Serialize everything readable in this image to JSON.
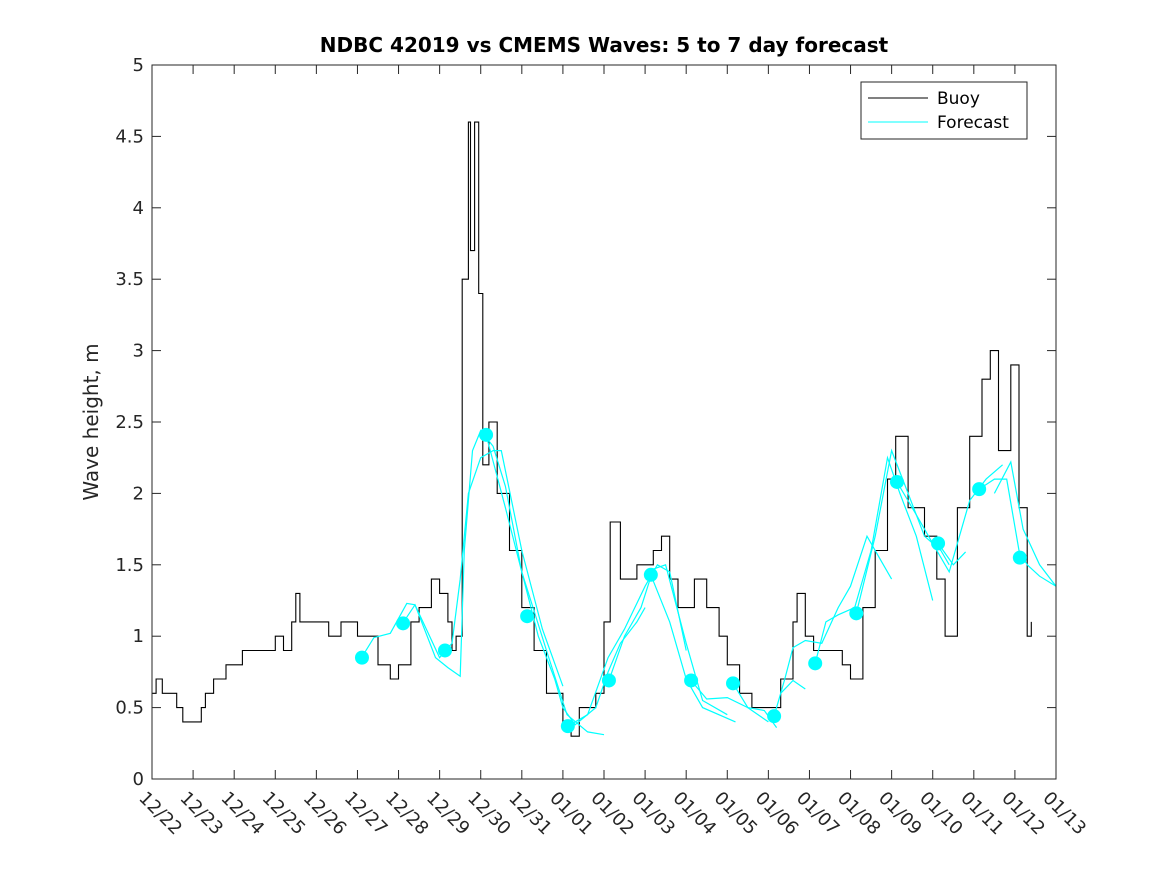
{
  "chart_data": {
    "type": "line",
    "title": "NDBC 42019 vs CMEMS Waves: 5 to 7 day forecast",
    "xlabel": "",
    "ylabel": "Wave height, m",
    "x_unit": "days since 12/22",
    "xlim": [
      0,
      22
    ],
    "ylim": [
      0,
      5
    ],
    "xticks": [
      0,
      1,
      2,
      3,
      4,
      5,
      6,
      7,
      8,
      9,
      10,
      11,
      12,
      13,
      14,
      15,
      16,
      17,
      18,
      19,
      20,
      21,
      22
    ],
    "xtick_labels": [
      "12/22",
      "12/23",
      "12/24",
      "12/25",
      "12/26",
      "12/27",
      "12/28",
      "12/29",
      "12/30",
      "12/31",
      "01/01",
      "01/02",
      "01/03",
      "01/04",
      "01/05",
      "01/06",
      "01/07",
      "01/08",
      "01/09",
      "01/10",
      "01/11",
      "01/12",
      "01/13"
    ],
    "yticks": [
      0,
      0.5,
      1,
      1.5,
      2,
      2.5,
      3,
      3.5,
      4,
      4.5,
      5
    ],
    "ytick_labels": [
      "0",
      "0.5",
      "1",
      "1.5",
      "2",
      "2.5",
      "3",
      "3.5",
      "4",
      "4.5",
      "5"
    ],
    "grid": false,
    "legend": {
      "placement": "top-right",
      "entries": [
        "Buoy",
        "Forecast"
      ]
    },
    "colors": {
      "buoy": "#000000",
      "forecast": "#00ffff"
    },
    "buoy": [
      [
        0,
        0.6
      ],
      [
        0.1,
        0.7
      ],
      [
        0.25,
        0.6
      ],
      [
        0.6,
        0.5
      ],
      [
        0.75,
        0.4
      ],
      [
        1.0,
        0.4
      ],
      [
        1.2,
        0.5
      ],
      [
        1.3,
        0.6
      ],
      [
        1.5,
        0.7
      ],
      [
        1.8,
        0.8
      ],
      [
        2.0,
        0.8
      ],
      [
        2.2,
        0.9
      ],
      [
        2.4,
        0.9
      ],
      [
        2.6,
        0.8
      ],
      [
        2.8,
        0.9
      ],
      [
        3.0,
        1.0
      ],
      [
        3.2,
        0.9
      ],
      [
        3.5,
        1.0
      ],
      [
        3.7,
        1.1
      ],
      [
        4.0,
        1.1
      ],
      [
        4.3,
        1.2
      ],
      [
        4.5,
        1.3
      ],
      [
        4.6,
        1.1
      ],
      [
        4.8,
        1.0
      ],
      [
        5.0,
        1.1
      ],
      [
        5.3,
        1.0
      ],
      [
        5.6,
        1.0
      ],
      [
        5.9,
        1.1
      ],
      [
        6.2,
        1.0
      ],
      [
        6.5,
        0.9
      ],
      [
        6.8,
        0.9
      ],
      [
        7.0,
        0.8
      ],
      [
        7.3,
        0.8
      ],
      [
        7.5,
        0.7
      ],
      [
        7.8,
        0.8
      ],
      [
        8.0,
        0.8
      ],
      [
        8.1,
        1.0
      ],
      [
        8.3,
        1.1
      ],
      [
        6.5,
        1.2
      ]
    ],
    "buoy_series": [
      [
        0,
        0.6
      ],
      [
        0.1,
        0.7
      ],
      [
        0.25,
        0.6
      ],
      [
        0.6,
        0.5
      ],
      [
        0.75,
        0.4
      ],
      [
        1.0,
        0.4
      ],
      [
        1.2,
        0.5
      ],
      [
        1.3,
        0.6
      ],
      [
        1.5,
        0.7
      ],
      [
        1.8,
        0.8
      ],
      [
        2.0,
        0.8
      ],
      [
        2.2,
        0.9
      ],
      [
        2.5,
        0.9
      ],
      [
        2.8,
        0.9
      ],
      [
        3.0,
        1.0
      ],
      [
        3.2,
        0.9
      ],
      [
        3.4,
        1.1
      ],
      [
        3.5,
        1.3
      ],
      [
        3.6,
        1.1
      ],
      [
        4.0,
        1.1
      ],
      [
        4.3,
        1.0
      ],
      [
        4.6,
        1.1
      ],
      [
        5.0,
        1.0
      ],
      [
        5.2,
        1.0
      ],
      [
        5.5,
        0.8
      ],
      [
        5.8,
        0.7
      ],
      [
        6.0,
        0.8
      ],
      [
        6.3,
        1.1
      ],
      [
        6.5,
        1.2
      ],
      [
        6.8,
        1.4
      ],
      [
        7.0,
        1.3
      ],
      [
        7.2,
        1.1
      ],
      [
        7.3,
        0.9
      ],
      [
        7.4,
        1.0
      ],
      [
        7.55,
        3.5
      ],
      [
        7.7,
        4.6
      ],
      [
        7.75,
        3.7
      ],
      [
        7.85,
        4.6
      ],
      [
        7.95,
        3.4
      ],
      [
        8.05,
        2.2
      ],
      [
        8.2,
        2.5
      ],
      [
        8.4,
        2.0
      ],
      [
        8.7,
        1.6
      ],
      [
        9.0,
        1.2
      ],
      [
        9.3,
        0.9
      ],
      [
        9.6,
        0.6
      ],
      [
        10.0,
        0.4
      ],
      [
        10.2,
        0.3
      ],
      [
        10.4,
        0.5
      ],
      [
        10.8,
        0.6
      ],
      [
        11.0,
        1.1
      ],
      [
        11.15,
        1.8
      ],
      [
        11.4,
        1.4
      ],
      [
        11.8,
        1.5
      ],
      [
        12.2,
        1.6
      ],
      [
        12.4,
        1.7
      ],
      [
        12.6,
        1.4
      ],
      [
        12.8,
        1.2
      ],
      [
        13.0,
        1.2
      ],
      [
        13.2,
        1.4
      ],
      [
        13.5,
        1.2
      ],
      [
        13.8,
        1.0
      ],
      [
        14.0,
        0.8
      ],
      [
        14.3,
        0.6
      ],
      [
        14.6,
        0.5
      ],
      [
        15.0,
        0.5
      ],
      [
        15.3,
        0.7
      ],
      [
        15.6,
        1.1
      ],
      [
        15.7,
        1.3
      ],
      [
        15.9,
        1.0
      ],
      [
        16.1,
        0.9
      ],
      [
        16.5,
        0.9
      ],
      [
        16.8,
        0.8
      ],
      [
        17.0,
        0.7
      ],
      [
        17.3,
        1.2
      ],
      [
        17.6,
        1.6
      ],
      [
        17.9,
        2.1
      ],
      [
        18.1,
        2.4
      ],
      [
        18.4,
        1.9
      ],
      [
        18.8,
        1.7
      ],
      [
        19.1,
        1.4
      ],
      [
        19.3,
        1.0
      ],
      [
        19.6,
        1.9
      ],
      [
        19.9,
        2.4
      ],
      [
        20.2,
        2.8
      ],
      [
        20.4,
        3.0
      ],
      [
        20.6,
        2.3
      ],
      [
        20.9,
        2.9
      ],
      [
        21.1,
        1.9
      ],
      [
        21.3,
        1.0
      ],
      [
        21.4,
        1.1
      ]
    ],
    "forecast_points": [
      [
        5.11,
        0.85
      ],
      [
        6.11,
        1.09
      ],
      [
        7.13,
        0.9
      ],
      [
        8.13,
        2.41
      ],
      [
        9.13,
        1.14
      ],
      [
        10.12,
        0.37
      ],
      [
        11.12,
        0.69
      ],
      [
        12.14,
        1.43
      ],
      [
        13.12,
        0.69
      ],
      [
        14.14,
        0.67
      ],
      [
        15.14,
        0.44
      ],
      [
        16.14,
        0.81
      ],
      [
        17.14,
        1.16
      ],
      [
        18.13,
        2.08
      ],
      [
        19.13,
        1.65
      ],
      [
        20.13,
        2.03
      ],
      [
        21.12,
        1.55
      ]
    ],
    "forecast_lines": [
      [
        [
          5.1,
          0.85
        ],
        [
          5.4,
          0.99
        ],
        [
          5.8,
          1.02
        ],
        [
          6.2,
          1.23
        ],
        [
          6.4,
          1.22
        ],
        [
          6.9,
          0.85
        ],
        [
          7.2,
          0.78
        ],
        [
          7.5,
          0.72
        ],
        [
          7.6,
          1.6
        ],
        [
          7.8,
          2.3
        ],
        [
          8.0,
          2.44
        ],
        [
          8.3,
          2.33
        ],
        [
          8.6,
          2.05
        ],
        [
          9.0,
          1.45
        ],
        [
          9.4,
          1.0
        ],
        [
          9.8,
          0.7
        ],
        [
          10.0,
          0.5
        ],
        [
          10.3,
          0.38
        ],
        [
          10.8,
          0.5
        ],
        [
          11.1,
          0.75
        ],
        [
          11.4,
          0.95
        ],
        [
          11.8,
          1.1
        ],
        [
          12.0,
          1.2
        ]
      ],
      [
        [
          6.1,
          1.09
        ],
        [
          6.4,
          1.22
        ],
        [
          7.0,
          0.85
        ],
        [
          7.3,
          0.95
        ],
        [
          7.5,
          1.4
        ],
        [
          7.7,
          2.0
        ],
        [
          8.0,
          2.25
        ],
        [
          8.3,
          2.3
        ],
        [
          8.5,
          2.3
        ],
        [
          9.0,
          1.6
        ],
        [
          9.5,
          1.05
        ],
        [
          10.0,
          0.65
        ]
      ],
      [
        [
          8.13,
          2.41
        ],
        [
          8.6,
          1.9
        ],
        [
          9.0,
          1.45
        ],
        [
          9.6,
          0.9
        ],
        [
          10.1,
          0.45
        ],
        [
          10.6,
          0.33
        ],
        [
          11.0,
          0.31
        ]
      ],
      [
        [
          10.12,
          0.37
        ],
        [
          10.6,
          0.45
        ],
        [
          11.1,
          0.85
        ],
        [
          11.5,
          1.05
        ],
        [
          12.0,
          1.35
        ],
        [
          12.3,
          1.5
        ],
        [
          12.6,
          1.45
        ],
        [
          13.0,
          0.9
        ]
      ],
      [
        [
          11.12,
          0.69
        ],
        [
          11.5,
          1.0
        ],
        [
          11.9,
          1.2
        ],
        [
          12.2,
          1.47
        ],
        [
          12.5,
          1.5
        ],
        [
          13.0,
          0.95
        ],
        [
          13.4,
          0.55
        ],
        [
          14.0,
          0.45
        ]
      ],
      [
        [
          12.14,
          1.43
        ],
        [
          12.6,
          1.1
        ],
        [
          13.0,
          0.7
        ],
        [
          13.4,
          0.5
        ],
        [
          14.2,
          0.4
        ]
      ],
      [
        [
          13.12,
          0.69
        ],
        [
          13.5,
          0.56
        ],
        [
          14.0,
          0.57
        ],
        [
          14.5,
          0.5
        ],
        [
          15.0,
          0.4
        ]
      ],
      [
        [
          14.14,
          0.67
        ],
        [
          14.5,
          0.5
        ],
        [
          14.9,
          0.48
        ],
        [
          15.2,
          0.36
        ]
      ],
      [
        [
          15.14,
          0.44
        ],
        [
          15.4,
          0.7
        ],
        [
          15.6,
          0.92
        ],
        [
          15.9,
          0.97
        ],
        [
          16.3,
          0.95
        ],
        [
          16.7,
          1.2
        ],
        [
          17.0,
          1.35
        ],
        [
          17.4,
          1.7
        ],
        [
          17.7,
          1.55
        ],
        [
          18.0,
          1.4
        ]
      ],
      [
        [
          15.3,
          0.6
        ],
        [
          15.6,
          0.69
        ],
        [
          15.9,
          0.63
        ]
      ],
      [
        [
          16.14,
          0.81
        ],
        [
          16.4,
          1.1
        ],
        [
          16.7,
          1.15
        ],
        [
          17.1,
          1.2
        ],
        [
          17.5,
          1.6
        ],
        [
          17.9,
          2.25
        ],
        [
          18.2,
          2.0
        ],
        [
          18.6,
          1.7
        ],
        [
          19.0,
          1.25
        ]
      ],
      [
        [
          17.14,
          1.16
        ],
        [
          17.6,
          1.7
        ],
        [
          18.0,
          2.3
        ],
        [
          18.4,
          2.0
        ],
        [
          18.8,
          1.7
        ],
        [
          19.2,
          1.6
        ],
        [
          19.4,
          1.5
        ]
      ],
      [
        [
          18.13,
          2.08
        ],
        [
          18.6,
          1.85
        ],
        [
          19.0,
          1.65
        ],
        [
          19.4,
          1.45
        ],
        [
          19.7,
          1.75
        ],
        [
          19.9,
          1.95
        ],
        [
          20.3,
          2.1
        ],
        [
          20.7,
          2.2
        ]
      ],
      [
        [
          19.13,
          1.65
        ],
        [
          19.5,
          1.5
        ],
        [
          19.8,
          1.59
        ]
      ],
      [
        [
          20.13,
          2.03
        ],
        [
          20.5,
          2.1
        ],
        [
          20.8,
          2.1
        ],
        [
          21.1,
          1.6
        ],
        [
          21.3,
          1.5
        ],
        [
          21.6,
          1.42
        ],
        [
          22,
          1.35
        ]
      ],
      [
        [
          20.5,
          2.0
        ],
        [
          20.9,
          2.22
        ],
        [
          21.2,
          1.75
        ],
        [
          21.6,
          1.5
        ],
        [
          22,
          1.35
        ]
      ]
    ]
  }
}
